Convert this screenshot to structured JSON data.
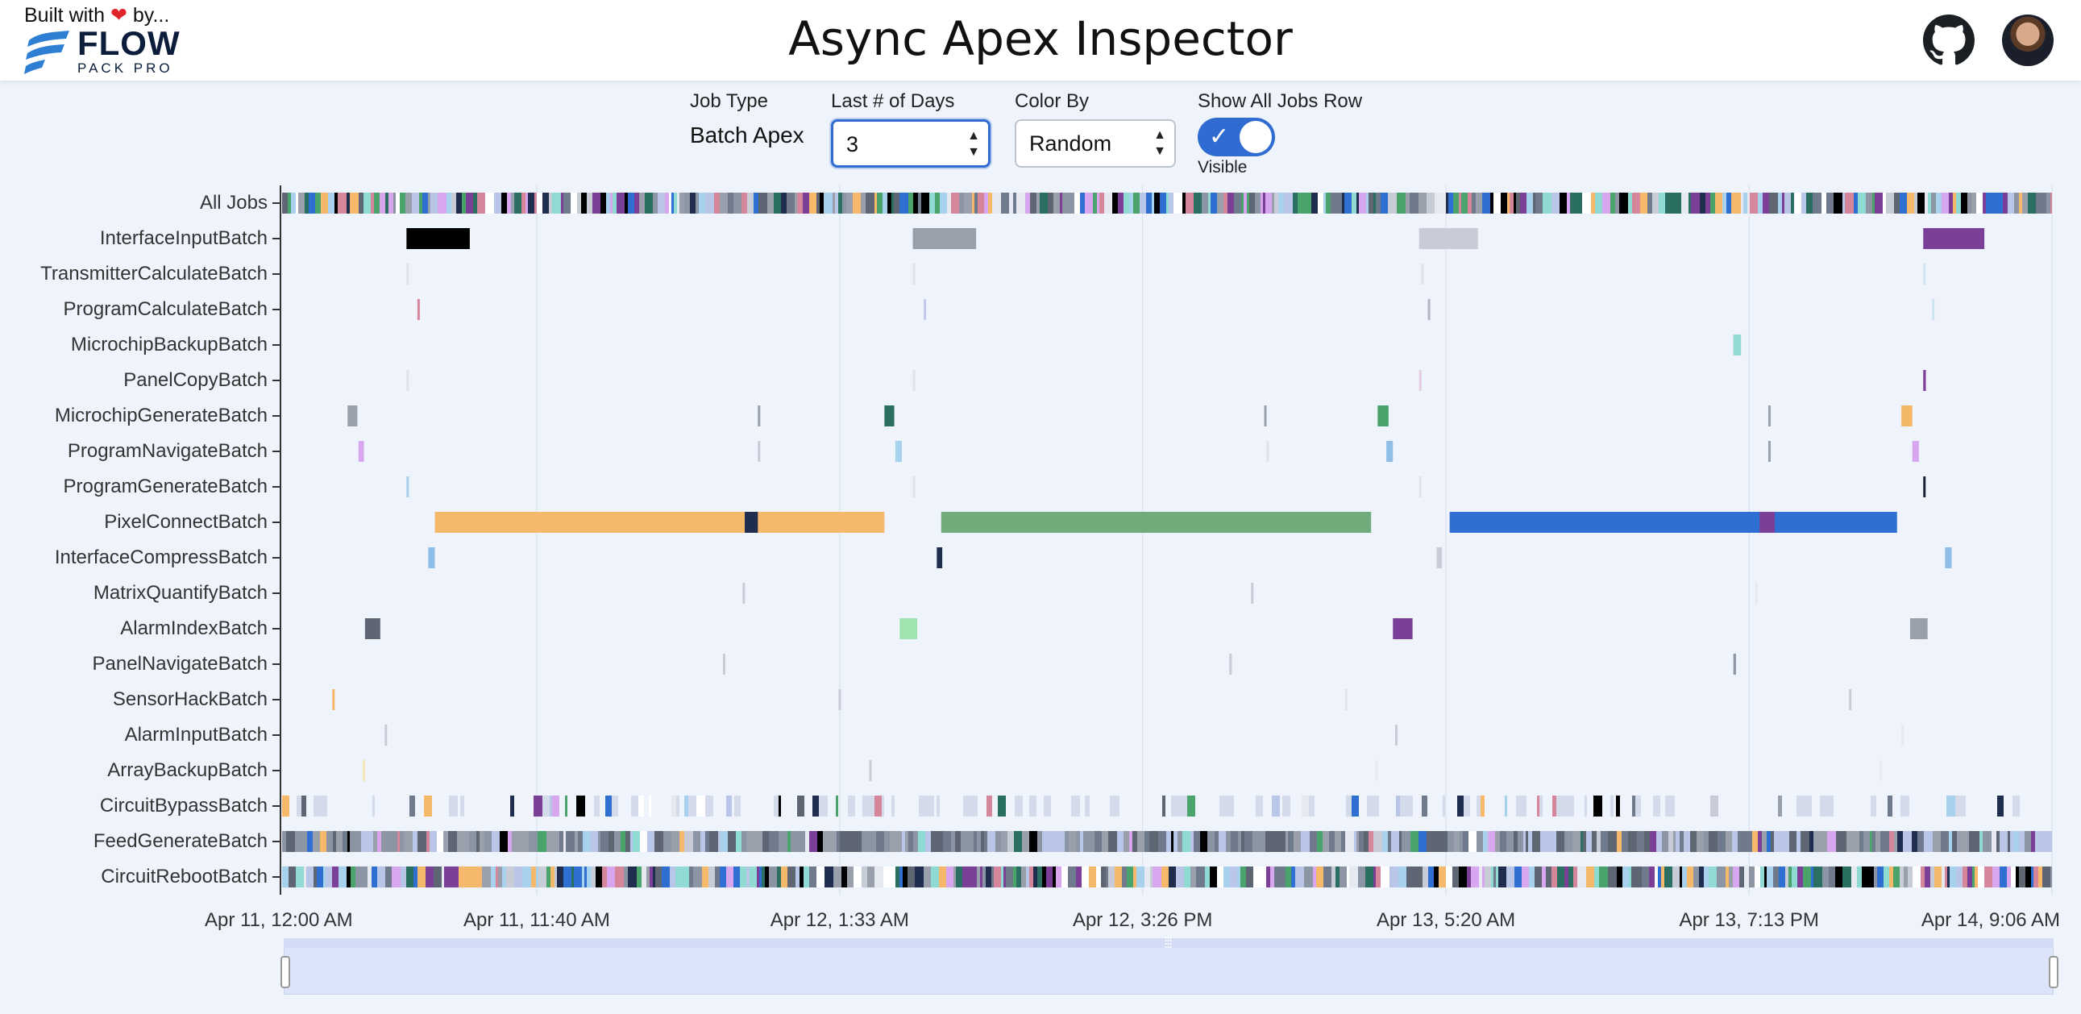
{
  "header": {
    "built_text": "Built with",
    "built_suffix": "by...",
    "logo_main": "FLOW",
    "logo_sub": "PACK PRO",
    "title": "Async Apex Inspector"
  },
  "icons": {
    "github": "github-icon",
    "avatar": "user-avatar",
    "heart": "heart-icon"
  },
  "controls": {
    "job_type_label": "Job Type",
    "job_type_value": "Batch Apex",
    "days_label": "Last # of Days",
    "days_value": "3",
    "color_label": "Color By",
    "color_value": "Random",
    "show_all_label": "Show All Jobs Row",
    "show_all_state": "Visible"
  },
  "colors": {
    "accent": "#2f6bd1",
    "background": "#eef3fc"
  },
  "chart_data": {
    "type": "timeline",
    "title": "",
    "x_range": [
      "Apr 11, 12:00 AM",
      "Apr 14, 9:06 AM"
    ],
    "x_ticks": [
      "Apr 11, 12:00 AM",
      "Apr 11, 11:40 AM",
      "Apr 12, 1:33 AM",
      "Apr 12, 3:26 PM",
      "Apr 13, 5:20 AM",
      "Apr 13, 7:13 PM",
      "Apr 14, 9:06 AM"
    ],
    "x_tick_hours": [
      0,
      11.67,
      25.55,
      39.43,
      53.33,
      67.22,
      81.1
    ],
    "total_hours": 81.1,
    "rows": [
      {
        "name": "All Jobs",
        "dense": "all"
      },
      {
        "name": "InterfaceInputBatch",
        "jobs": [
          {
            "s": 5.7,
            "d": 2.9,
            "c": "#000000"
          },
          {
            "s": 28.9,
            "d": 2.9,
            "c": "#9aa0ab"
          },
          {
            "s": 52.1,
            "d": 2.7,
            "c": "#c8ccd6"
          },
          {
            "s": 75.2,
            "d": 2.8,
            "c": "#7b3f98"
          }
        ]
      },
      {
        "name": "TransmitterCalculateBatch",
        "jobs": [
          {
            "s": 5.7,
            "d": 0.08,
            "c": "#dfe3ec"
          },
          {
            "s": 28.9,
            "d": 0.08,
            "c": "#dfe3ec"
          },
          {
            "s": 52.2,
            "d": 0.08,
            "c": "#dfe3ec"
          },
          {
            "s": 75.2,
            "d": 0.08,
            "c": "#cfe4f3"
          }
        ]
      },
      {
        "name": "ProgramCalculateBatch",
        "jobs": [
          {
            "s": 6.2,
            "d": 0.1,
            "c": "#d6869b"
          },
          {
            "s": 29.4,
            "d": 0.08,
            "c": "#c4c7e8"
          },
          {
            "s": 52.5,
            "d": 0.08,
            "c": "#b9b2c9"
          },
          {
            "s": 75.6,
            "d": 0.08,
            "c": "#cfe4f3"
          }
        ]
      },
      {
        "name": "MicrochipBackupBatch",
        "jobs": [
          {
            "s": 66.5,
            "d": 0.35,
            "c": "#8fdad2"
          }
        ]
      },
      {
        "name": "PanelCopyBatch",
        "jobs": [
          {
            "s": 5.7,
            "d": 0.08,
            "c": "#dfe3ec"
          },
          {
            "s": 28.9,
            "d": 0.08,
            "c": "#dfe3ec"
          },
          {
            "s": 52.1,
            "d": 0.08,
            "c": "#e6c9de"
          },
          {
            "s": 75.2,
            "d": 0.12,
            "c": "#7b3f98"
          }
        ]
      },
      {
        "name": "MicrochipGenerateBatch",
        "jobs": [
          {
            "s": 3.0,
            "d": 0.45,
            "c": "#9aa0ab"
          },
          {
            "s": 21.8,
            "d": 0.08,
            "c": "#9aa0ab"
          },
          {
            "s": 27.6,
            "d": 0.45,
            "c": "#2b6e62"
          },
          {
            "s": 45.0,
            "d": 0.08,
            "c": "#9aa0ab"
          },
          {
            "s": 50.2,
            "d": 0.5,
            "c": "#4aa36a"
          },
          {
            "s": 68.1,
            "d": 0.08,
            "c": "#9aa0ab"
          },
          {
            "s": 74.2,
            "d": 0.5,
            "c": "#f3b766"
          }
        ]
      },
      {
        "name": "ProgramNavigateBatch",
        "jobs": [
          {
            "s": 3.5,
            "d": 0.25,
            "c": "#d7a6ee"
          },
          {
            "s": 21.8,
            "d": 0.08,
            "c": "#c8ccd6"
          },
          {
            "s": 28.1,
            "d": 0.3,
            "c": "#a8d1ee"
          },
          {
            "s": 45.1,
            "d": 0.08,
            "c": "#dfe3ec"
          },
          {
            "s": 50.6,
            "d": 0.3,
            "c": "#8ebee8"
          },
          {
            "s": 68.1,
            "d": 0.08,
            "c": "#9aa0ab"
          },
          {
            "s": 74.7,
            "d": 0.3,
            "c": "#d7a6ee"
          }
        ]
      },
      {
        "name": "ProgramGenerateBatch",
        "jobs": [
          {
            "s": 5.7,
            "d": 0.08,
            "c": "#a8d1ee"
          },
          {
            "s": 28.9,
            "d": 0.08,
            "c": "#dfe3ec"
          },
          {
            "s": 52.1,
            "d": 0.08,
            "c": "#dfe3ec"
          },
          {
            "s": 75.2,
            "d": 0.1,
            "c": "#1c2234"
          }
        ]
      },
      {
        "name": "PixelConnectBatch",
        "jobs": [
          {
            "s": 7.0,
            "d": 20.6,
            "c": "#f6b96c"
          },
          {
            "s": 21.2,
            "d": 0.6,
            "c": "#1f2e4f"
          },
          {
            "s": 30.2,
            "d": 19.7,
            "c": "#70ab7c"
          },
          {
            "s": 53.5,
            "d": 20.5,
            "c": "#2f6fd1"
          },
          {
            "s": 67.7,
            "d": 0.7,
            "c": "#7b3f98"
          }
        ]
      },
      {
        "name": "InterfaceCompressBatch",
        "jobs": [
          {
            "s": 6.7,
            "d": 0.3,
            "c": "#8ebee8"
          },
          {
            "s": 30.0,
            "d": 0.25,
            "c": "#1f2e4f"
          },
          {
            "s": 52.9,
            "d": 0.25,
            "c": "#c8ccd6"
          },
          {
            "s": 76.2,
            "d": 0.3,
            "c": "#8ebee8"
          }
        ]
      },
      {
        "name": "MatrixQuantifyBatch",
        "jobs": [
          {
            "s": 21.1,
            "d": 0.08,
            "c": "#c8ccd6"
          },
          {
            "s": 44.4,
            "d": 0.08,
            "c": "#c8ccd6"
          },
          {
            "s": 67.5,
            "d": 0.08,
            "c": "#e6e9ef"
          }
        ]
      },
      {
        "name": "AlarmIndexBatch",
        "jobs": [
          {
            "s": 3.8,
            "d": 0.7,
            "c": "#5e6674"
          },
          {
            "s": 28.3,
            "d": 0.8,
            "c": "#9fe3b0"
          },
          {
            "s": 50.9,
            "d": 0.9,
            "c": "#7b3f98"
          },
          {
            "s": 74.6,
            "d": 0.8,
            "c": "#9aa0ab"
          }
        ]
      },
      {
        "name": "PanelNavigateBatch",
        "jobs": [
          {
            "s": 20.2,
            "d": 0.1,
            "c": "#c8ccd6"
          },
          {
            "s": 43.4,
            "d": 0.12,
            "c": "#c8ccd6"
          },
          {
            "s": 66.5,
            "d": 0.12,
            "c": "#8c95a4"
          }
        ]
      },
      {
        "name": "SensorHackBatch",
        "jobs": [
          {
            "s": 2.3,
            "d": 0.08,
            "c": "#f3b766"
          },
          {
            "s": 25.5,
            "d": 0.08,
            "c": "#c8ccd6"
          },
          {
            "s": 48.7,
            "d": 0.08,
            "c": "#dfe3ec"
          },
          {
            "s": 71.8,
            "d": 0.08,
            "c": "#c8ccd6"
          }
        ]
      },
      {
        "name": "AlarmInputBatch",
        "jobs": [
          {
            "s": 4.7,
            "d": 0.08,
            "c": "#c8ccd6"
          },
          {
            "s": 51.0,
            "d": 0.08,
            "c": "#c8ccd6"
          },
          {
            "s": 74.2,
            "d": 0.08,
            "c": "#e6e9ef"
          }
        ]
      },
      {
        "name": "ArrayBackupBatch",
        "jobs": [
          {
            "s": 3.7,
            "d": 0.08,
            "c": "#f5e7b5"
          },
          {
            "s": 26.9,
            "d": 0.08,
            "c": "#c8ccd6"
          },
          {
            "s": 50.1,
            "d": 0.08,
            "c": "#e6e9ef"
          },
          {
            "s": 73.2,
            "d": 0.08,
            "c": "#e6e9ef"
          }
        ]
      },
      {
        "name": "CircuitBypassBatch",
        "dense": "sparse"
      },
      {
        "name": "FeedGenerateBatch",
        "dense": "full"
      },
      {
        "name": "CircuitRebootBatch",
        "dense": "all"
      }
    ]
  }
}
